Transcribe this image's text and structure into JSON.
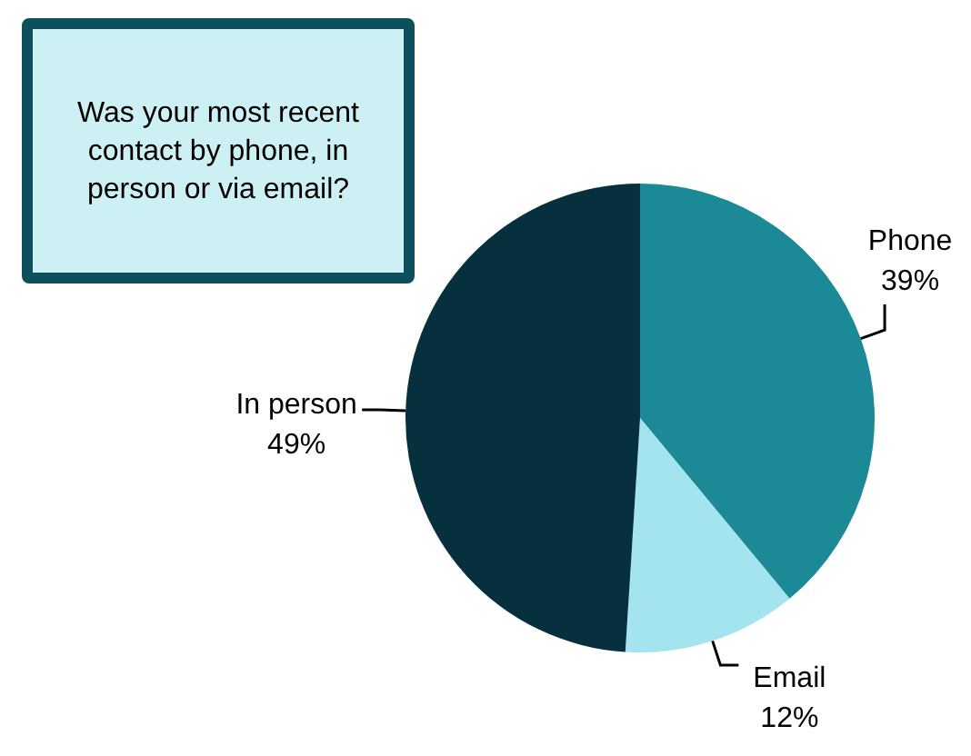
{
  "chart_data": {
    "type": "pie",
    "title": "Was your most recent contact by phone, in person or via email?",
    "categories": [
      "Phone",
      "Email",
      "In person"
    ],
    "values": [
      39,
      12,
      49
    ],
    "colors": [
      "#1b8a96",
      "#a3e4ef",
      "#07303f"
    ],
    "value_labels": [
      "39%",
      "12%",
      "49%"
    ],
    "legend": false
  }
}
